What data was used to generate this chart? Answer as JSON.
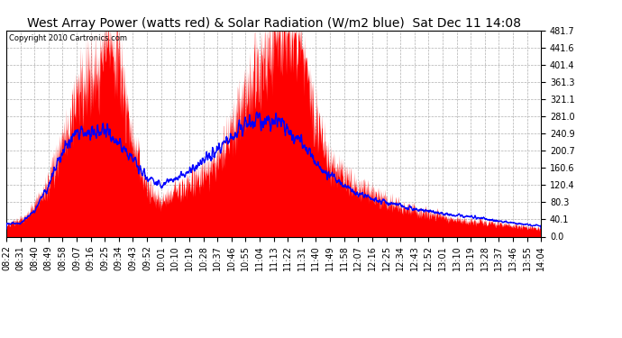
{
  "title": "West Array Power (watts red) & Solar Radiation (W/m2 blue)  Sat Dec 11 14:08",
  "copyright": "Copyright 2010 Cartronics.com",
  "ylabel_right_values": [
    481.7,
    441.6,
    401.4,
    361.3,
    321.1,
    281.0,
    240.9,
    200.7,
    160.6,
    120.4,
    80.3,
    40.1,
    0.0
  ],
  "ymax": 481.7,
  "ymin": 0.0,
  "bg_color": "#ffffff",
  "grid_color": "#b0b0b0",
  "fill_color": "#ff0000",
  "line_color": "#0000ff",
  "title_fontsize": 10,
  "tick_fontsize": 7,
  "x_tick_labels": [
    "08:22",
    "08:31",
    "08:40",
    "08:49",
    "08:58",
    "09:07",
    "09:16",
    "09:25",
    "09:34",
    "09:43",
    "09:52",
    "10:01",
    "10:10",
    "10:19",
    "10:28",
    "10:37",
    "10:46",
    "10:55",
    "11:04",
    "11:13",
    "11:22",
    "11:31",
    "11:40",
    "11:49",
    "11:58",
    "12:07",
    "12:16",
    "12:25",
    "12:34",
    "12:43",
    "12:52",
    "13:01",
    "13:10",
    "13:19",
    "13:28",
    "13:37",
    "13:46",
    "13:55",
    "14:04"
  ]
}
